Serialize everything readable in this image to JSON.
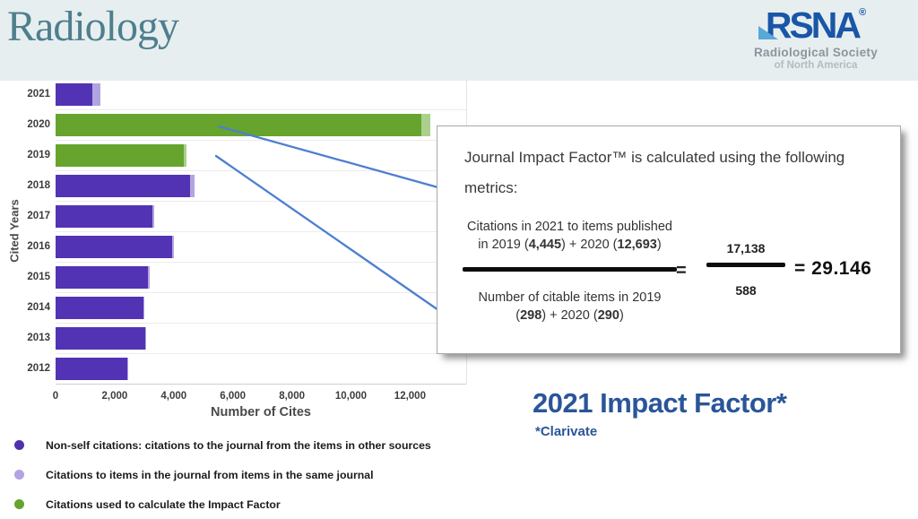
{
  "colors": {
    "purple": "#5233b4",
    "light_purple": "#b2a4e2",
    "green": "#67a42d",
    "light_green": "#abd08d",
    "connector_blue": "#4d7fd0",
    "accent_blue": "#2a5599",
    "radiology_teal": "#4e7f8d",
    "rsna_blue": "#1a56a7",
    "header_bg": "#e7eef0"
  },
  "header": {
    "journal_logo": "Radiology",
    "rsna_wordmark": "RSNA",
    "rsna_registered": "®",
    "rsna_line1": "Radiological Society",
    "rsna_line2": "of North America"
  },
  "chart_data": {
    "type": "bar",
    "orientation": "horizontal",
    "title": "",
    "ylabel": "Cited Years",
    "xlabel": "Number of Cites",
    "xlim": [
      0,
      13900
    ],
    "xticks": [
      0,
      2000,
      4000,
      6000,
      8000,
      10000,
      12000
    ],
    "xtick_labels": [
      "0",
      "2,000",
      "4,000",
      "6,000",
      "8,000",
      "10,000",
      "12,000"
    ],
    "grid": true,
    "legend_position": "bottom-left",
    "segment_meaning": {
      "main_purple": "Non-self citations: citations to the journal from the items in other sources",
      "main_green": "Citations used to calculate the Impact Factor",
      "tip_light": "Citations to items in the journal from items in the same journal"
    },
    "bars": [
      {
        "year": "2021",
        "main": 1250,
        "tip": 280,
        "highlight": false
      },
      {
        "year": "2020",
        "main": 12390,
        "tip": 303,
        "highlight": true
      },
      {
        "year": "2019",
        "main": 4330,
        "tip": 115,
        "highlight": true
      },
      {
        "year": "2018",
        "main": 4560,
        "tip": 130,
        "highlight": false
      },
      {
        "year": "2017",
        "main": 3290,
        "tip": 60,
        "highlight": false
      },
      {
        "year": "2016",
        "main": 3950,
        "tip": 60,
        "highlight": false
      },
      {
        "year": "2015",
        "main": 3140,
        "tip": 50,
        "highlight": false
      },
      {
        "year": "2014",
        "main": 2960,
        "tip": 50,
        "highlight": false
      },
      {
        "year": "2013",
        "main": 3020,
        "tip": 50,
        "highlight": false
      },
      {
        "year": "2012",
        "main": 2420,
        "tip": 40,
        "highlight": false
      }
    ]
  },
  "legend": {
    "items": [
      {
        "color": "#4f31ae",
        "label": "Non-self citations: citations to the journal from the items in other sources"
      },
      {
        "color": "#b2a4e2",
        "label": "Citations to items in the journal from items in the same journal"
      },
      {
        "color": "#67a42d",
        "label": "Citations used to calculate the Impact Factor"
      }
    ]
  },
  "callout": {
    "title": "Journal Impact Factor™ is calculated using the following metrics:",
    "numerator_line1": "Citations in 2021 to items published",
    "numerator_line2_parts": [
      "in 2019 (",
      "4,445",
      ") + 2020 (",
      "12,693",
      ")"
    ],
    "denominator_line1": "Number of citable items in 2019",
    "denominator_line2_parts": [
      "(",
      "298",
      ") + 2020 (",
      "290",
      ")"
    ],
    "equals": "=",
    "fraction_top": "17,138",
    "fraction_bottom": "588",
    "result": "= 29.146"
  },
  "footer": {
    "title": "2021 Impact Factor*",
    "attribution": "*Clarivate"
  }
}
